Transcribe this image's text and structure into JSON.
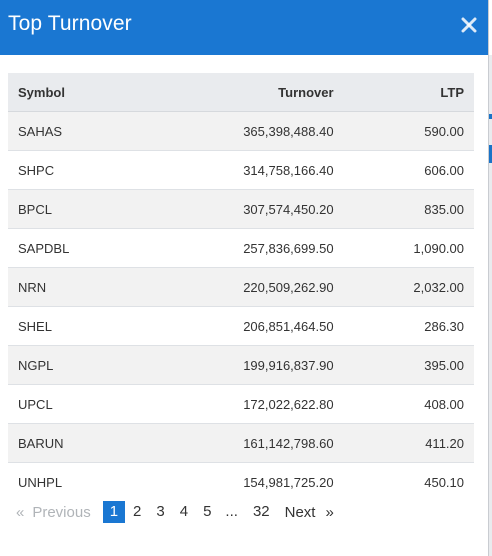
{
  "modal": {
    "title": "Top Turnover",
    "close_label": "×"
  },
  "table": {
    "headers": {
      "symbol": "Symbol",
      "turnover": "Turnover",
      "ltp": "LTP"
    },
    "rows": [
      {
        "symbol": "SAHAS",
        "turnover": "365,398,488.40",
        "ltp": "590.00"
      },
      {
        "symbol": "SHPC",
        "turnover": "314,758,166.40",
        "ltp": "606.00"
      },
      {
        "symbol": "BPCL",
        "turnover": "307,574,450.20",
        "ltp": "835.00"
      },
      {
        "symbol": "SAPDBL",
        "turnover": "257,836,699.50",
        "ltp": "1,090.00"
      },
      {
        "symbol": "NRN",
        "turnover": "220,509,262.90",
        "ltp": "2,032.00"
      },
      {
        "symbol": "SHEL",
        "turnover": "206,851,464.50",
        "ltp": "286.30"
      },
      {
        "symbol": "NGPL",
        "turnover": "199,916,837.90",
        "ltp": "395.00"
      },
      {
        "symbol": "UPCL",
        "turnover": "172,022,622.80",
        "ltp": "408.00"
      },
      {
        "symbol": "BARUN",
        "turnover": "161,142,798.60",
        "ltp": "411.20"
      },
      {
        "symbol": "UNHPL",
        "turnover": "154,981,725.20",
        "ltp": "450.10"
      }
    ]
  },
  "pagination": {
    "prev_arrow": "«",
    "prev_label": "Previous",
    "pages": [
      "1",
      "2",
      "3",
      "4",
      "5"
    ],
    "current": "1",
    "ellipsis": "...",
    "last_page": "32",
    "next_label": "Next",
    "next_arrow": "»"
  },
  "colors": {
    "header_bg": "#1a77d2",
    "active_page_bg": "#1a77d2",
    "table_header_bg": "#e9ebee",
    "stripe_bg": "#f2f2f2"
  }
}
